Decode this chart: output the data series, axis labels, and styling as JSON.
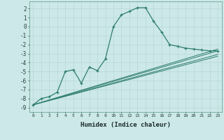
{
  "xlabel": "Humidex (Indice chaleur)",
  "bg_color": "#cce8e8",
  "grid_color": "#b8d8d8",
  "line_color": "#2e7d6e",
  "x_main": [
    0,
    1,
    2,
    3,
    4,
    5,
    6,
    7,
    8,
    9,
    10,
    11,
    12,
    13,
    14,
    15,
    16,
    17,
    18,
    19,
    20,
    21,
    22,
    23
  ],
  "y_main": [
    -8.7,
    -8.0,
    -7.8,
    -7.3,
    -5.0,
    -4.8,
    -6.3,
    -4.5,
    -4.9,
    -3.6,
    0.0,
    1.3,
    1.7,
    2.1,
    2.1,
    0.6,
    -0.6,
    -2.0,
    -2.2,
    -2.4,
    -2.5,
    -2.6,
    -2.7,
    -2.7
  ],
  "ref_lines": [
    [
      [
        -8.7,
        -3.1
      ],
      [
        -8.7,
        -2.7
      ],
      [
        -8.7,
        -3.3
      ],
      [
        -8.7,
        -2.5
      ]
    ]
  ],
  "ylim": [
    -9.5,
    2.8
  ],
  "xlim": [
    -0.5,
    23.5
  ],
  "yticks": [
    2,
    1,
    0,
    -1,
    -2,
    -3,
    -4,
    -5,
    -6,
    -7,
    -8,
    -9
  ],
  "xtick_labels": [
    "0",
    "1",
    "2",
    "3",
    "4",
    "5",
    "6",
    "7",
    "8",
    "9",
    "10",
    "11",
    "12",
    "13",
    "14",
    "15",
    "16",
    "17",
    "18",
    "19",
    "20",
    "21",
    "22",
    "23"
  ]
}
